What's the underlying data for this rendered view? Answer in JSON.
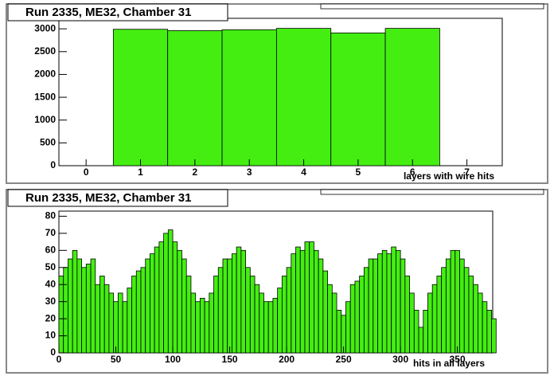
{
  "chart_data": [
    {
      "type": "histogram",
      "title": "Run 2335, ME32, Chamber 31",
      "x_label": "layers with wire hits",
      "bins": [
        0.5,
        1.5,
        2.5,
        3.5,
        4.5,
        5.5,
        6.5
      ],
      "values": [
        2990,
        2960,
        2980,
        3010,
        2910,
        3010
      ],
      "color": "#44ee11",
      "xlim": [
        -0.5,
        7.65
      ],
      "xticks": [
        0,
        1,
        2,
        3,
        4,
        5,
        6,
        7
      ],
      "ylim": [
        0,
        3230
      ],
      "yticks": [
        0,
        500,
        1000,
        1500,
        2000,
        2500,
        3000
      ]
    },
    {
      "type": "histogram",
      "title": "Run 2335, ME32, Chamber 31",
      "x_label": "hits in all layers",
      "bins": [
        0,
        4,
        8,
        12,
        16,
        20,
        24,
        28,
        32,
        36,
        40,
        44,
        48,
        52,
        56,
        60,
        64,
        68,
        72,
        76,
        80,
        84,
        88,
        92,
        96,
        100,
        104,
        108,
        112,
        116,
        120,
        124,
        128,
        132,
        136,
        140,
        144,
        148,
        152,
        156,
        160,
        164,
        168,
        172,
        176,
        180,
        184,
        188,
        192,
        196,
        200,
        204,
        208,
        212,
        216,
        220,
        224,
        228,
        232,
        236,
        240,
        244,
        248,
        252,
        256,
        260,
        264,
        268,
        272,
        276,
        280,
        284,
        288,
        292,
        296,
        300,
        304,
        308,
        312,
        316,
        320,
        324,
        328,
        332,
        336,
        340,
        344,
        348,
        352,
        356,
        360,
        364,
        368,
        372,
        376,
        380,
        384
      ],
      "values": [
        45,
        50,
        55,
        60,
        55,
        50,
        52,
        55,
        40,
        45,
        40,
        35,
        30,
        35,
        30,
        38,
        45,
        48,
        50,
        55,
        58,
        62,
        65,
        70,
        72,
        65,
        60,
        55,
        45,
        35,
        30,
        32,
        30,
        35,
        45,
        50,
        55,
        55,
        58,
        62,
        60,
        50,
        45,
        40,
        35,
        30,
        30,
        32,
        38,
        45,
        50,
        58,
        62,
        60,
        65,
        65,
        60,
        55,
        48,
        40,
        35,
        25,
        22,
        30,
        40,
        42,
        45,
        50,
        55,
        55,
        58,
        60,
        58,
        62,
        60,
        55,
        45,
        35,
        25,
        15,
        25,
        35,
        40,
        45,
        50,
        55,
        60,
        60,
        55,
        50,
        45,
        40,
        35,
        30,
        25,
        20
      ],
      "color": "#44ee11",
      "xlim": [
        0,
        381
      ],
      "xticks": [
        0,
        50,
        100,
        150,
        200,
        250,
        300,
        350
      ],
      "ylim": [
        0,
        83
      ],
      "yticks": [
        0,
        10,
        20,
        30,
        40,
        50,
        60,
        70,
        80
      ]
    }
  ]
}
